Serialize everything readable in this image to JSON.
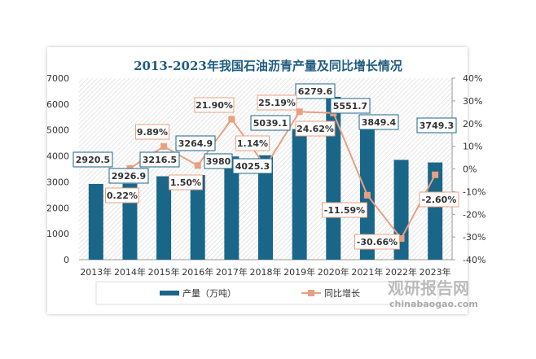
{
  "chart_data": {
    "type": "bar+line",
    "title": "2013-2023年我国石油沥青产量及同比增长情况",
    "categories": [
      "2013年",
      "2014年",
      "2015年",
      "2016年",
      "2017年",
      "2018年",
      "2019年",
      "2020年",
      "2021年",
      "2022年",
      "2023年"
    ],
    "series": [
      {
        "name": "产量（万吨）",
        "type": "bar",
        "axis": "left",
        "color": "#1a6689",
        "values": [
          2920.5,
          2926.9,
          3216.5,
          3264.9,
          3980,
          4025.3,
          5039.1,
          6279.6,
          5551.7,
          3849.4,
          3749.3
        ],
        "labels": [
          "2920.5",
          "2926.9",
          "3216.5",
          "3264.9",
          "3980",
          "4025.3",
          "5039.1",
          "6279.6",
          "5551.7",
          "3849.4",
          "3749.3"
        ]
      },
      {
        "name": "同比增长",
        "type": "line",
        "axis": "right",
        "color": "#e8a080",
        "values": [
          null,
          0.22,
          9.89,
          1.5,
          21.9,
          1.14,
          25.19,
          24.62,
          -11.59,
          -30.66,
          -2.6
        ],
        "labels": [
          "",
          "0.22%",
          "9.89%",
          "1.50%",
          "21.90%",
          "1.14%",
          "25.19%",
          "24.62%",
          "-11.59%",
          "-30.66%",
          "-2.60%"
        ]
      }
    ],
    "ylim": [
      0,
      7000
    ],
    "yticks": [
      "0",
      "1000",
      "2000",
      "3000",
      "4000",
      "5000",
      "6000",
      "7000"
    ],
    "y2lim": [
      -40,
      40
    ],
    "y2ticks": [
      "-40%",
      "-30%",
      "-20%",
      "-10%",
      "0%",
      "10%",
      "20%",
      "30%",
      "40%"
    ],
    "legend": "bottom",
    "grid": false
  },
  "watermark": {
    "name": "观研报告网",
    "url": "chinabaogao.com"
  }
}
